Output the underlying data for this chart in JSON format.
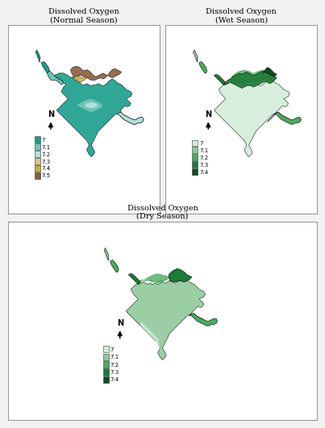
{
  "panels": [
    {
      "title": "Dissolved Oxygen\n(Normal Season)",
      "legend_labels": [
        "7",
        "7.1",
        "7.2",
        "7.3",
        "7.4",
        "7.5"
      ],
      "legend_colors": [
        "#1a9e8c",
        "#6cc5b8",
        "#b3e0db",
        "#d4c97a",
        "#c9a84c",
        "#8b5e3c"
      ]
    },
    {
      "title": "Dissolved Oxygen\n(Wet Season)",
      "legend_labels": [
        "7",
        "7.1",
        "7.2",
        "7.3",
        "7.4"
      ],
      "legend_colors": [
        "#d4edda",
        "#90c99a",
        "#4caa5e",
        "#1e7a36",
        "#0d4d22"
      ]
    },
    {
      "title": "Dissolved Oxygen\n(Dry Season)",
      "legend_labels": [
        "7",
        "7.1",
        "7.2",
        "7.3",
        "7.4"
      ],
      "legend_colors": [
        "#d4edda",
        "#90c99a",
        "#4caa5e",
        "#1e7a36",
        "#0d4d22"
      ]
    }
  ],
  "bg_color": "#f2f2f2",
  "panel_bg": "#ffffff",
  "border_color": "#999999"
}
